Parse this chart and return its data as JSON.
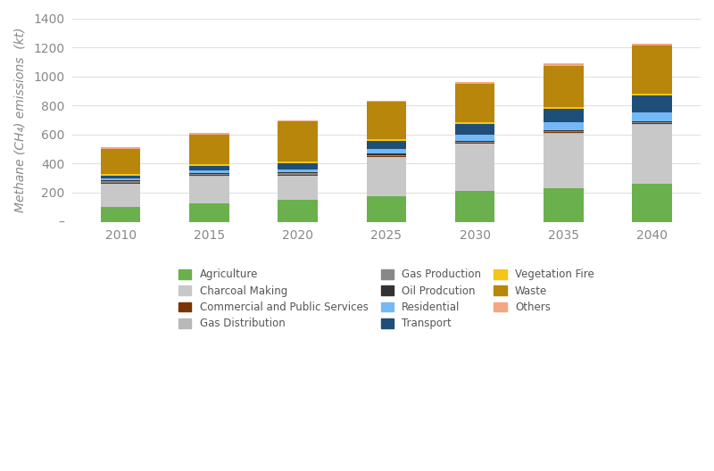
{
  "years": [
    2010,
    2015,
    2020,
    2025,
    2030,
    2035,
    2040
  ],
  "categories": [
    "Agriculture",
    "Charcoal Making",
    "Gas Distribution",
    "Commercial and Public Services",
    "Gas Production",
    "Oil Prodcution",
    "Residential",
    "Transport",
    "Vegetation Fire",
    "Waste",
    "Others"
  ],
  "colors": [
    "#6ab04c",
    "#c8c8c8",
    "#b8b8b8",
    "#7b3300",
    "#888888",
    "#333333",
    "#74b9f5",
    "#1f4e79",
    "#f5c518",
    "#b8860b",
    "#f4a582"
  ],
  "legend_order": [
    "Agriculture",
    "Charcoal Making",
    "Commercial and Public Services",
    "Gas Distribution",
    "Gas Production",
    "Oil Prodcution",
    "Residential",
    "Transport",
    "Vegetation Fire",
    "Waste",
    "Others"
  ],
  "data": {
    "Agriculture": [
      100,
      128,
      153,
      178,
      210,
      232,
      262
    ],
    "Charcoal Making": [
      160,
      185,
      162,
      265,
      325,
      375,
      405
    ],
    "Gas Distribution": [
      4,
      4,
      4,
      4,
      4,
      4,
      4
    ],
    "Commercial and Public Services": [
      5,
      5,
      5,
      5,
      5,
      5,
      5
    ],
    "Gas Production": [
      8,
      8,
      8,
      8,
      8,
      8,
      8
    ],
    "Oil Prodcution": [
      7,
      7,
      7,
      7,
      7,
      7,
      7
    ],
    "Residential": [
      12,
      16,
      22,
      32,
      42,
      52,
      62
    ],
    "Transport": [
      22,
      32,
      42,
      58,
      72,
      92,
      115
    ],
    "Vegetation Fire": [
      10,
      10,
      10,
      12,
      12,
      12,
      12
    ],
    "Waste": [
      172,
      205,
      277,
      256,
      265,
      285,
      330
    ],
    "Others": [
      10,
      10,
      10,
      10,
      10,
      16,
      15
    ]
  },
  "ylabel": "Methane (CH₄) emissions  (kt)",
  "ylim": [
    0,
    1400
  ],
  "yticks": [
    0,
    200,
    400,
    600,
    800,
    1000,
    1200,
    1400
  ],
  "background_color": "#ffffff",
  "grid_color": "#e0e0e0",
  "bar_width": 0.45
}
